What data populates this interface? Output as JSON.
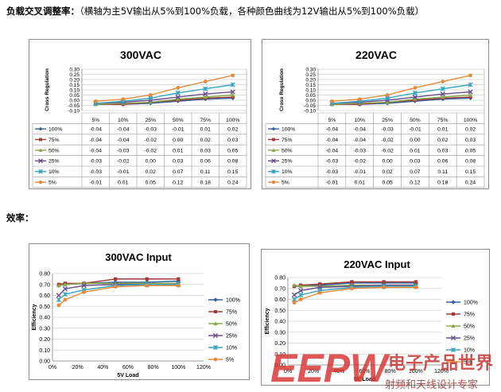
{
  "headings": {
    "cross_title": "负载交叉调整率：",
    "cross_note": "（横轴为主5V输出从5%到100%负载，各种颜色曲线为12V输出从5%到100%负载）",
    "eff_title": "效率："
  },
  "watermark": {
    "logo": "EEPW",
    "cn": "电子产品世界",
    "tagline": "射频和天线设计专家"
  },
  "colors": {
    "100%": "#2e5f9e",
    "75%": "#a23a38",
    "50%": "#89a848",
    "25%": "#6a4f8f",
    "10%": "#38a5c0",
    "5%": "#e68a3a"
  },
  "chart_data": [
    {
      "type": "line",
      "title": "300VAC",
      "ylabel": "Cross Regulation",
      "categories": [
        "5%",
        "10%",
        "25%",
        "50%",
        "75%",
        "100%"
      ],
      "ylim": [
        -0.1,
        0.3
      ],
      "yticks": [
        "0.30",
        "0.25",
        "0.20",
        "0.15",
        "0.10",
        "0.05",
        "0.00",
        "-0.05",
        "-0.10"
      ],
      "has_table": true,
      "series": [
        {
          "name": "100%",
          "marker": "diamond",
          "values": [
            -0.04,
            -0.04,
            -0.03,
            -0.01,
            0.01,
            0.02
          ]
        },
        {
          "name": "75%",
          "marker": "square",
          "values": [
            -0.04,
            -0.04,
            -0.02,
            0.0,
            0.02,
            0.03
          ]
        },
        {
          "name": "50%",
          "marker": "triangle",
          "values": [
            -0.04,
            -0.03,
            -0.02,
            0.01,
            0.03,
            0.05
          ]
        },
        {
          "name": "25%",
          "marker": "x",
          "values": [
            -0.03,
            -0.02,
            0.0,
            0.03,
            0.06,
            0.08
          ]
        },
        {
          "name": "10%",
          "marker": "star",
          "values": [
            -0.03,
            -0.01,
            0.02,
            0.07,
            0.11,
            0.15
          ]
        },
        {
          "name": "5%",
          "marker": "circle",
          "values": [
            -0.01,
            0.01,
            0.05,
            0.12,
            0.18,
            0.24
          ]
        }
      ]
    },
    {
      "type": "line",
      "title": "220VAC",
      "ylabel": "Cross Regulation",
      "categories": [
        "5%",
        "10%",
        "25%",
        "50%",
        "75%",
        "100%"
      ],
      "ylim": [
        -0.1,
        0.3
      ],
      "yticks": [
        "0.30",
        "0.25",
        "0.20",
        "0.15",
        "0.10",
        "0.05",
        "0.00",
        "-0.05",
        "-0.10"
      ],
      "has_table": true,
      "series": [
        {
          "name": "100%",
          "marker": "diamond",
          "values": [
            -0.04,
            -0.04,
            -0.03,
            -0.01,
            0.01,
            0.02
          ]
        },
        {
          "name": "75%",
          "marker": "square",
          "values": [
            -0.04,
            -0.04,
            -0.02,
            0.0,
            0.02,
            0.03
          ]
        },
        {
          "name": "50%",
          "marker": "triangle",
          "values": [
            -0.04,
            -0.03,
            -0.02,
            0.01,
            0.03,
            0.05
          ]
        },
        {
          "name": "25%",
          "marker": "x",
          "values": [
            -0.03,
            -0.02,
            0.0,
            0.03,
            0.06,
            0.08
          ]
        },
        {
          "name": "10%",
          "marker": "star",
          "values": [
            -0.03,
            -0.01,
            0.02,
            0.07,
            0.11,
            0.15
          ]
        },
        {
          "name": "5%",
          "marker": "circle",
          "values": [
            -0.01,
            0.01,
            0.05,
            0.12,
            0.18,
            0.24
          ]
        }
      ]
    },
    {
      "type": "line",
      "title": "300VAC Input",
      "xlabel": "5V Load",
      "ylabel": "Efficiency",
      "xlim": [
        0,
        1.2
      ],
      "xticks": [
        "0%",
        "20%",
        "40%",
        "60%",
        "80%",
        "100%",
        "120%"
      ],
      "ylim": [
        0,
        0.8
      ],
      "yticks": [
        "0.80",
        "0.70",
        "0.60",
        "0.50",
        "0.40",
        "0.30",
        "0.20",
        "0.10",
        "0.00"
      ],
      "legend": "right",
      "x": [
        0.05,
        0.1,
        0.25,
        0.5,
        0.75,
        1.0
      ],
      "series": [
        {
          "name": "100%",
          "marker": "diamond",
          "values": [
            0.69,
            0.7,
            0.71,
            0.72,
            0.72,
            0.73
          ]
        },
        {
          "name": "75%",
          "marker": "square",
          "values": [
            0.7,
            0.71,
            0.71,
            0.75,
            0.75,
            0.75
          ]
        },
        {
          "name": "50%",
          "marker": "triangle",
          "values": [
            0.69,
            0.7,
            0.71,
            0.71,
            0.71,
            0.71
          ]
        },
        {
          "name": "25%",
          "marker": "x",
          "values": [
            0.6,
            0.66,
            0.69,
            0.7,
            0.7,
            0.7
          ]
        },
        {
          "name": "10%",
          "marker": "star",
          "values": [
            0.56,
            0.61,
            0.65,
            0.69,
            0.7,
            0.7
          ]
        },
        {
          "name": "5%",
          "marker": "circle",
          "values": [
            0.51,
            0.56,
            0.63,
            0.68,
            0.69,
            0.69
          ]
        }
      ]
    },
    {
      "type": "line",
      "title": "220VAC Input",
      "xlabel": "5V Load",
      "ylabel": "Efficiency",
      "xlim": [
        0,
        1.2
      ],
      "xticks": [
        "0%",
        "20%",
        "40%",
        "60%",
        "80%",
        "100%",
        "120%"
      ],
      "ylim": [
        0,
        0.8
      ],
      "yticks": [
        "0.80",
        "0.70",
        "0.60",
        "0.50",
        "0.40",
        "0.30",
        "0.20",
        "0.10",
        "0.00"
      ],
      "legend": "right",
      "x": [
        0.05,
        0.1,
        0.25,
        0.5,
        0.75,
        1.0
      ],
      "series": [
        {
          "name": "100%",
          "marker": "diamond",
          "values": [
            0.72,
            0.72,
            0.73,
            0.75,
            0.75,
            0.75
          ]
        },
        {
          "name": "75%",
          "marker": "square",
          "values": [
            0.72,
            0.73,
            0.74,
            0.76,
            0.76,
            0.76
          ]
        },
        {
          "name": "50%",
          "marker": "triangle",
          "values": [
            0.73,
            0.72,
            0.72,
            0.73,
            0.73,
            0.73
          ]
        },
        {
          "name": "25%",
          "marker": "x",
          "values": [
            0.64,
            0.68,
            0.71,
            0.72,
            0.73,
            0.73
          ]
        },
        {
          "name": "10%",
          "marker": "star",
          "values": [
            0.6,
            0.64,
            0.68,
            0.71,
            0.72,
            0.72
          ]
        },
        {
          "name": "5%",
          "marker": "circle",
          "values": [
            0.57,
            0.6,
            0.66,
            0.7,
            0.71,
            0.71
          ]
        }
      ]
    }
  ]
}
